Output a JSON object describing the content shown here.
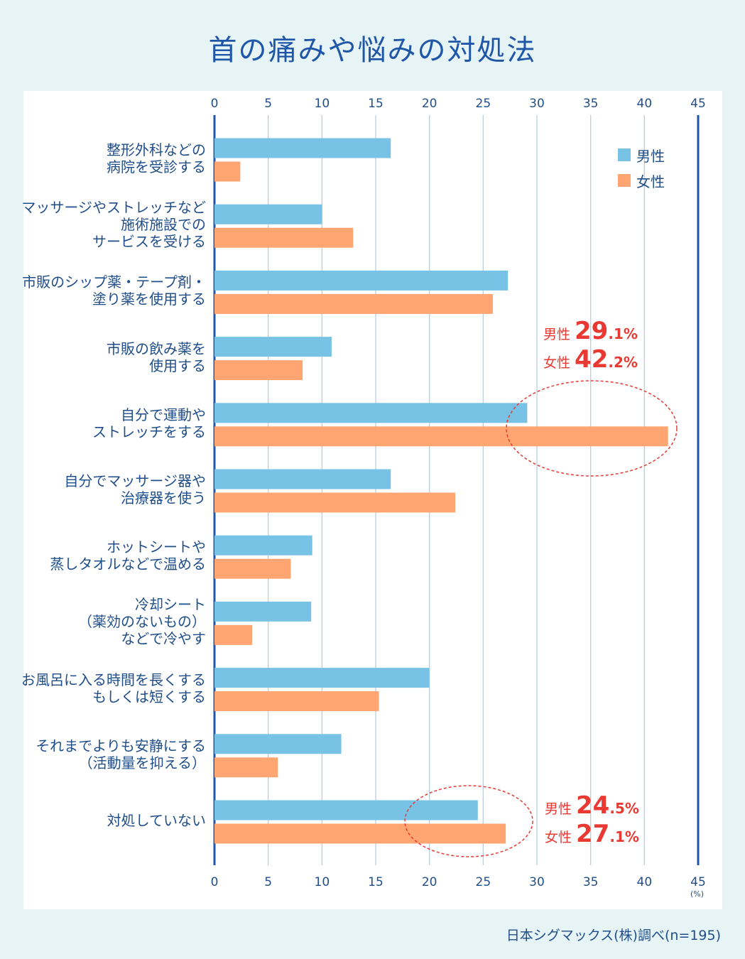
{
  "title": "首の痛みや悩みの対処法",
  "source": "日本シグマックス(株)調べ(n=195)",
  "unit_label": "(%)",
  "legend": [
    {
      "label": "男性",
      "color": "#78c2e6"
    },
    {
      "label": "女性",
      "color": "#ffa572"
    }
  ],
  "callouts": [
    {
      "rows": [
        {
          "label": "男性",
          "int": "29",
          "dec": ".1%"
        },
        {
          "label": "女性",
          "int": "42",
          "dec": ".2%"
        }
      ]
    },
    {
      "rows": [
        {
          "label": "男性",
          "int": "24",
          "dec": ".5%"
        },
        {
          "label": "女性",
          "int": "27",
          "dec": ".1%"
        }
      ]
    }
  ],
  "chart_data": {
    "type": "bar",
    "orientation": "horizontal",
    "title": "首の痛みや悩みの対処法",
    "xlim": [
      0,
      45
    ],
    "xticks": [
      0,
      5,
      10,
      15,
      20,
      25,
      30,
      35,
      40,
      45
    ],
    "xunit": "(%)",
    "grid": true,
    "legend_position": "top-right",
    "categories": [
      "整形外科などの\n病院を受診する",
      "マッサージやストレッチなど\n施術施設での\nサービスを受ける",
      "市販のシップ薬・テープ剤・\n塗り薬を使用する",
      "市販の飲み薬を\n使用する",
      "自分で運動や\nストレッチをする",
      "自分でマッサージ器や\n治療器を使う",
      "ホットシートや\n蒸しタオルなどで温める",
      "冷却シート\n（薬効のないもの）\nなどで冷やす",
      "お風呂に入る時間を長くする\nもしくは短くする",
      "それまでよりも安静にする\n（活動量を抑える）",
      "対処していない"
    ],
    "series": [
      {
        "name": "男性",
        "color": "#78c2e6",
        "values": [
          16.4,
          10.0,
          27.3,
          10.9,
          29.1,
          16.4,
          9.1,
          9.0,
          20.0,
          11.8,
          24.5
        ]
      },
      {
        "name": "女性",
        "color": "#ffa572",
        "values": [
          2.4,
          12.9,
          25.9,
          8.2,
          42.2,
          22.4,
          7.1,
          3.5,
          15.3,
          5.9,
          27.1
        ]
      }
    ]
  }
}
